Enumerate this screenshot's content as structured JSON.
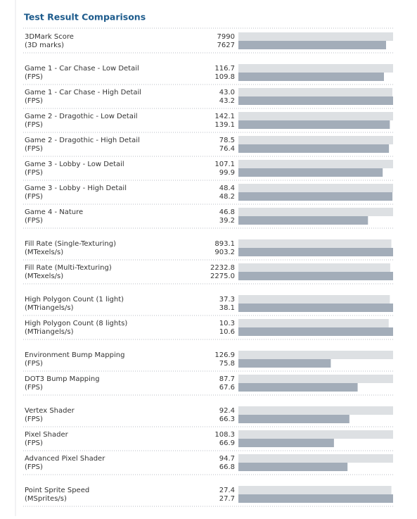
{
  "title": "Test Result Comparisons",
  "colors": [
    "#dde0e3",
    "#a3adb9"
  ],
  "groups": [
    [
      {
        "label": "3DMark Score",
        "unit": "(3D marks)",
        "values": [
          7990,
          7627
        ]
      }
    ],
    [
      {
        "label": "Game 1 - Car Chase - Low Detail",
        "unit": "(FPS)",
        "values": [
          116.7,
          109.8
        ]
      },
      {
        "label": "Game 1 - Car Chase - High Detail",
        "unit": "(FPS)",
        "values": [
          43.0,
          43.2
        ],
        "value_labels": [
          "43.0",
          "43.2"
        ]
      },
      {
        "label": "Game 2 - Dragothic - Low Detail",
        "unit": "(FPS)",
        "values": [
          142.1,
          139.1
        ]
      },
      {
        "label": "Game 2 - Dragothic - High Detail",
        "unit": "(FPS)",
        "values": [
          78.5,
          76.4
        ]
      },
      {
        "label": "Game 3 - Lobby - Low Detail",
        "unit": "(FPS)",
        "values": [
          107.1,
          99.9
        ]
      },
      {
        "label": "Game 3 - Lobby - High Detail",
        "unit": "(FPS)",
        "values": [
          48.4,
          48.2
        ]
      },
      {
        "label": "Game 4 - Nature",
        "unit": "(FPS)",
        "values": [
          46.8,
          39.2
        ]
      }
    ],
    [
      {
        "label": "Fill Rate (Single-Texturing)",
        "unit": "(MTexels/s)",
        "values": [
          893.1,
          903.2
        ]
      },
      {
        "label": "Fill Rate (Multi-Texturing)",
        "unit": "(MTexels/s)",
        "values": [
          2232.8,
          2275.0
        ],
        "value_labels": [
          "2232.8",
          "2275.0"
        ]
      }
    ],
    [
      {
        "label": "High Polygon Count (1 light)",
        "unit": "(MTriangels/s)",
        "values": [
          37.3,
          38.1
        ]
      },
      {
        "label": "High Polygon Count (8 lights)",
        "unit": "(MTriangels/s)",
        "values": [
          10.3,
          10.6
        ]
      }
    ],
    [
      {
        "label": "Environment Bump Mapping",
        "unit": "(FPS)",
        "values": [
          126.9,
          75.8
        ]
      },
      {
        "label": "DOT3 Bump Mapping",
        "unit": "(FPS)",
        "values": [
          87.7,
          67.6
        ]
      }
    ],
    [
      {
        "label": "Vertex Shader",
        "unit": "(FPS)",
        "values": [
          92.4,
          66.3
        ]
      },
      {
        "label": "Pixel Shader",
        "unit": "(FPS)",
        "values": [
          108.3,
          66.9
        ]
      },
      {
        "label": "Advanced Pixel Shader",
        "unit": "(FPS)",
        "values": [
          94.7,
          66.8
        ]
      }
    ],
    [
      {
        "label": "Point Sprite Speed",
        "unit": "(MSprites/s)",
        "values": [
          27.4,
          27.7
        ]
      }
    ]
  ]
}
